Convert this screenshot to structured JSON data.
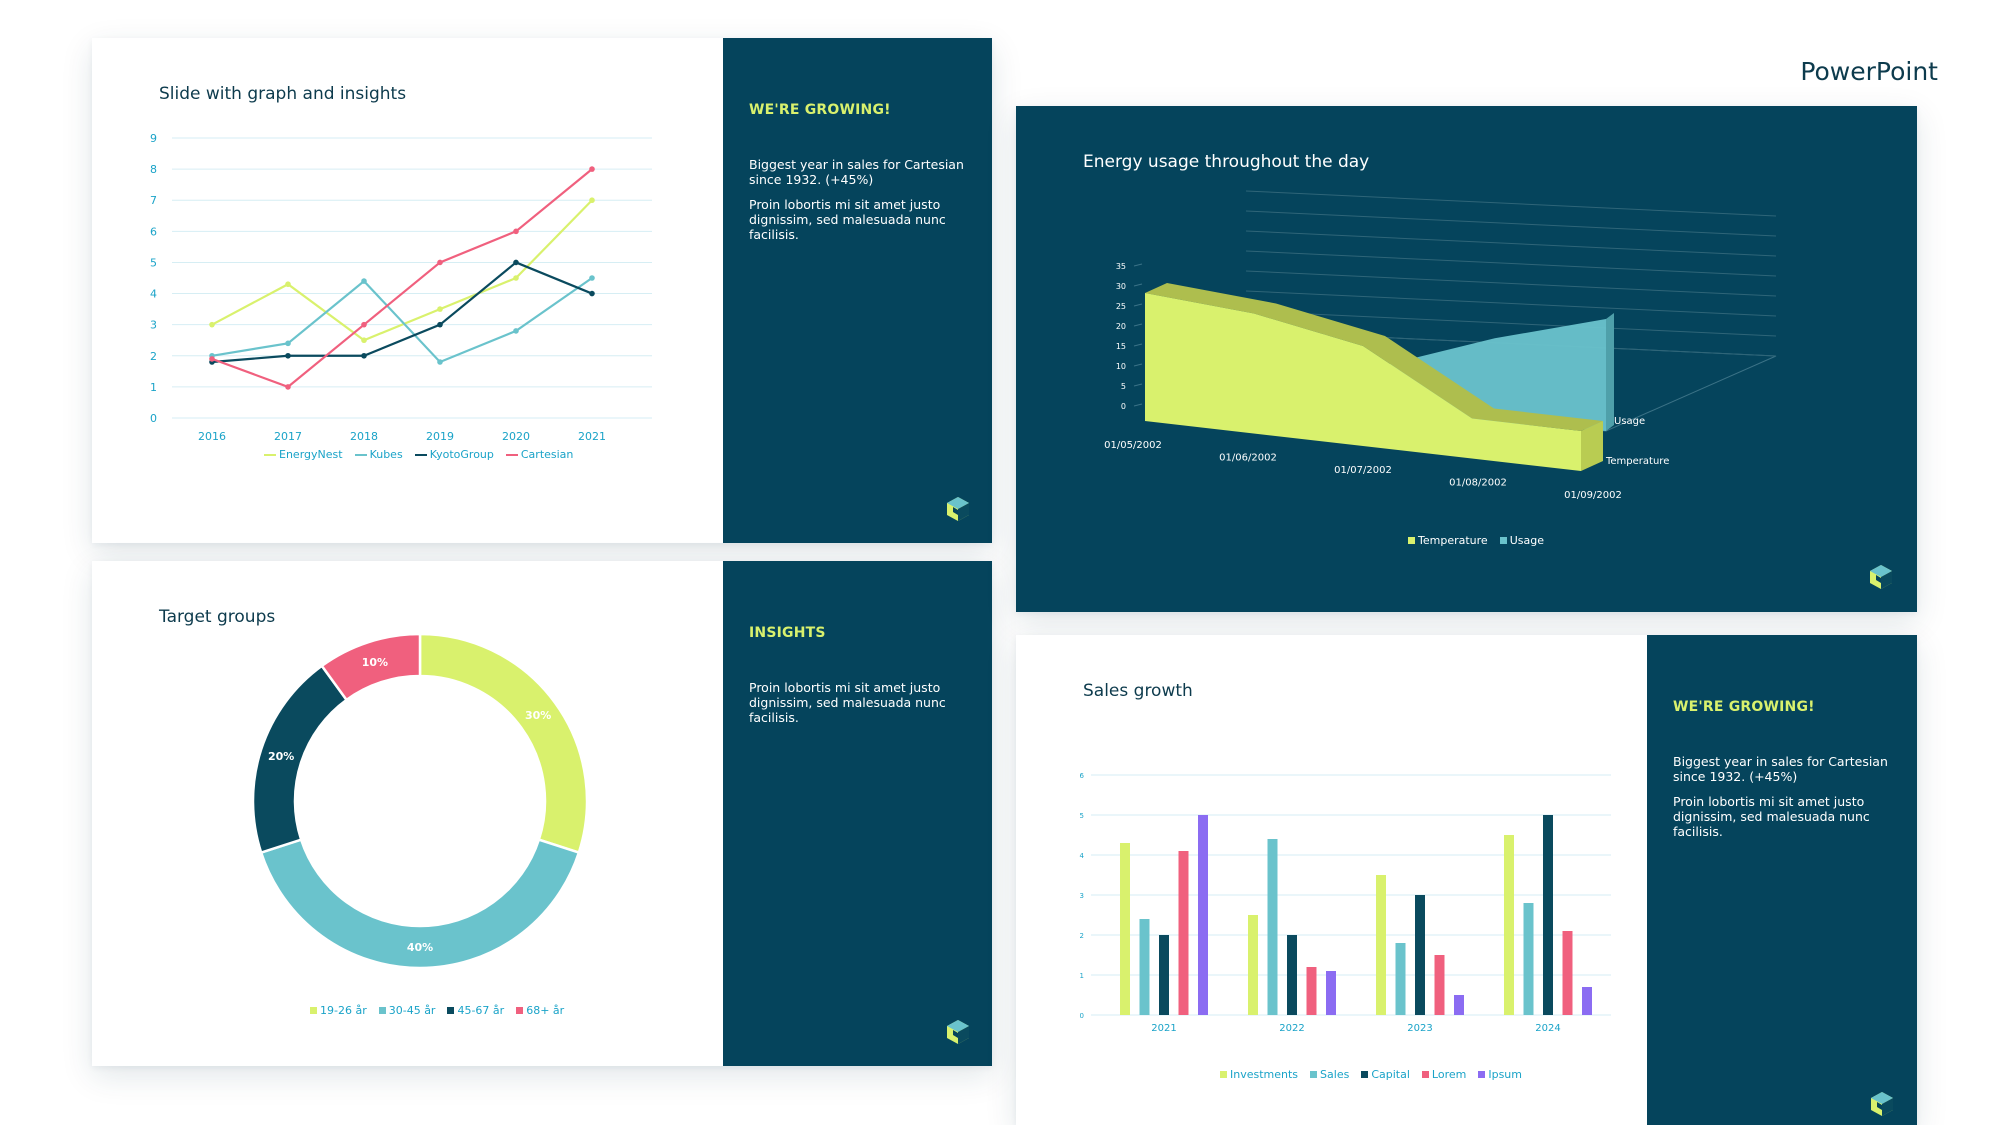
{
  "app": {
    "title": "PowerPoint"
  },
  "colors": {
    "panel": "#05445c",
    "lime": "#d9f16d",
    "teal": "#6ac3cc",
    "navy": "#0a4a5e",
    "pink": "#f0607e",
    "purple": "#8b6cf2",
    "axis": "#1aa3c8"
  },
  "slide1": {
    "title": "Slide with graph and insights",
    "panel": {
      "kicker": "WE'RE GROWING!",
      "p1": "Biggest year in sales for Cartesian since 1932. (+45%)",
      "p2": "Proin lobortis mi sit amet justo dignissim, sed malesuada nunc facilisis."
    },
    "chart_data": {
      "type": "line",
      "x": [
        "2016",
        "2017",
        "2018",
        "2019",
        "2020",
        "2021"
      ],
      "ylim": [
        0,
        9
      ],
      "yticks": [
        "0",
        "1",
        "2",
        "3",
        "4",
        "5",
        "6",
        "7",
        "8",
        "9"
      ],
      "series": [
        {
          "name": "EnergyNest",
          "color": "#d9f16d",
          "values": [
            3,
            4.3,
            2.5,
            3.5,
            4.5,
            7
          ]
        },
        {
          "name": "Kubes",
          "color": "#6ac3cc",
          "values": [
            2,
            2.4,
            4.4,
            1.8,
            2.8,
            4.5
          ]
        },
        {
          "name": "KyotoGroup",
          "color": "#0a4a5e",
          "values": [
            1.8,
            2,
            2,
            3,
            5,
            4
          ]
        },
        {
          "name": "Cartesian",
          "color": "#f0607e",
          "values": [
            1.9,
            1,
            3,
            5,
            6,
            8
          ]
        }
      ],
      "legend": "bottom",
      "grid": true
    }
  },
  "slide2": {
    "title": "Target groups",
    "panel": {
      "kicker": "INSIGHTS",
      "p1": "Proin lobortis mi sit amet justo dignissim, sed malesuada nunc facilisis."
    },
    "chart_data": {
      "type": "pie",
      "categories": [
        "19-26 år",
        "30-45 år",
        "45-67 år",
        "68+ år"
      ],
      "values": [
        30,
        40,
        20,
        10
      ],
      "labels": [
        "30%",
        "40%",
        "20%",
        "10%"
      ],
      "colors": [
        "#d9f16d",
        "#6ac3cc",
        "#0a4a5e",
        "#f0607e"
      ],
      "legend": "bottom"
    }
  },
  "slide3": {
    "title": "Energy usage throughout the day",
    "chart_data": {
      "type": "area",
      "x": [
        "01/05/2002",
        "01/06/2002",
        "01/07/2002",
        "01/08/2002",
        "01/09/2002"
      ],
      "ylim": [
        0,
        35
      ],
      "yticks": [
        "0",
        "5",
        "10",
        "15",
        "20",
        "25",
        "30",
        "35"
      ],
      "depth_labels": [
        "Usage",
        "Temperature"
      ],
      "series": [
        {
          "name": "Temperature",
          "color": "#d9f16d",
          "values": [
            32,
            30,
            25,
            10,
            10
          ]
        },
        {
          "name": "Usage",
          "color": "#6ac3cc",
          "values": [
            12,
            12,
            12,
            21,
            28
          ]
        }
      ],
      "legend": "bottom",
      "grid": true
    }
  },
  "slide4": {
    "title": "Sales growth",
    "panel": {
      "kicker": "WE'RE GROWING!",
      "p1": "Biggest year in sales for Cartesian since 1932. (+45%)",
      "p2": "Proin lobortis mi sit amet justo dignissim, sed malesuada nunc facilisis."
    },
    "chart_data": {
      "type": "bar",
      "categories": [
        "2021",
        "2022",
        "2023",
        "2024"
      ],
      "ylim": [
        0,
        6
      ],
      "yticks": [
        "0",
        "1",
        "2",
        "3",
        "4",
        "5",
        "6"
      ],
      "series": [
        {
          "name": "Investments",
          "color": "#d9f16d",
          "values": [
            4.3,
            2.5,
            3.5,
            4.5
          ]
        },
        {
          "name": "Sales",
          "color": "#6ac3cc",
          "values": [
            2.4,
            4.4,
            1.8,
            2.8
          ]
        },
        {
          "name": "Capital",
          "color": "#0a4a5e",
          "values": [
            2,
            2,
            3,
            5
          ]
        },
        {
          "name": "Lorem",
          "color": "#f0607e",
          "values": [
            4.1,
            1.2,
            1.5,
            2.1
          ]
        },
        {
          "name": "Ipsum",
          "color": "#8b6cf2",
          "values": [
            5,
            1.1,
            0.5,
            0.7
          ]
        }
      ],
      "legend": "bottom",
      "grid": true
    }
  }
}
